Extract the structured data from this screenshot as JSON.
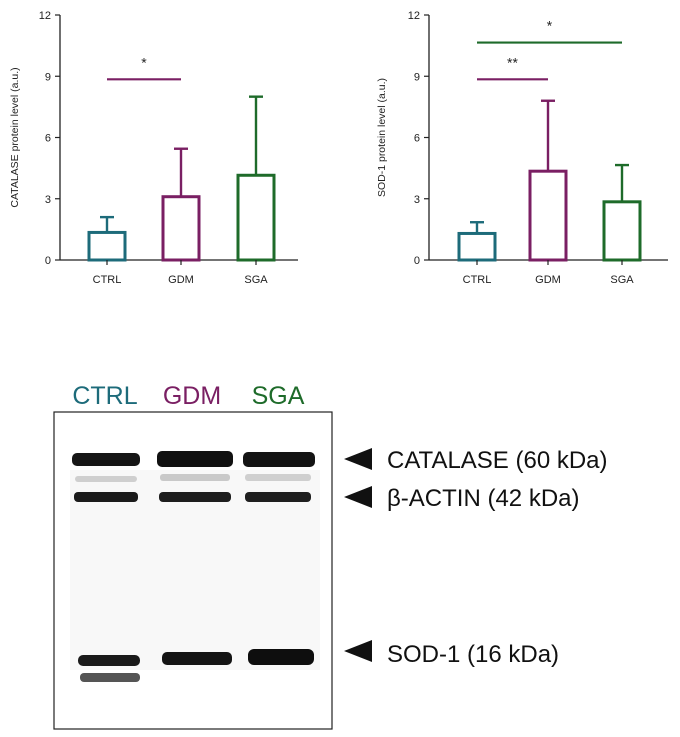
{
  "colors": {
    "CTRL": "#1d6b7a",
    "GDM": "#7a1f63",
    "SGA": "#1e6b2a"
  },
  "chart_data": [
    {
      "type": "bar",
      "categories": [
        "CTRL",
        "GDM",
        "SGA"
      ],
      "values": [
        1.35,
        3.1,
        4.15
      ],
      "error_upper": [
        2.1,
        5.45,
        8.0
      ],
      "ylabel": "CATALASE protein level (a.u.)",
      "ylim": [
        0,
        12
      ],
      "yticks": [
        "0",
        "3",
        "6",
        "9",
        "12"
      ],
      "significance": [
        {
          "from": "CTRL",
          "to": "GDM",
          "y": 8.85,
          "label": "*",
          "color": "#7a1f63"
        }
      ]
    },
    {
      "type": "bar",
      "categories": [
        "CTRL",
        "GDM",
        "SGA"
      ],
      "values": [
        1.3,
        4.35,
        2.85
      ],
      "error_upper": [
        1.85,
        7.8,
        4.65
      ],
      "ylabel": "SOD-1 protein level (a.u.)",
      "ylim": [
        0,
        12
      ],
      "yticks": [
        "0",
        "3",
        "6",
        "9",
        "12"
      ],
      "significance": [
        {
          "from": "CTRL",
          "to": "GDM",
          "y": 8.85,
          "label": "**",
          "color": "#7a1f63"
        },
        {
          "from": "CTRL",
          "to": "SGA",
          "y": 10.65,
          "label": "*",
          "color": "#1e6b2a"
        }
      ]
    }
  ],
  "blot": {
    "lanes": [
      "CTRL",
      "GDM",
      "SGA"
    ],
    "labels": [
      "CATALASE (60 kDa)",
      "β-ACTIN (42 kDa)",
      "SOD-1 (16 kDa)"
    ]
  }
}
